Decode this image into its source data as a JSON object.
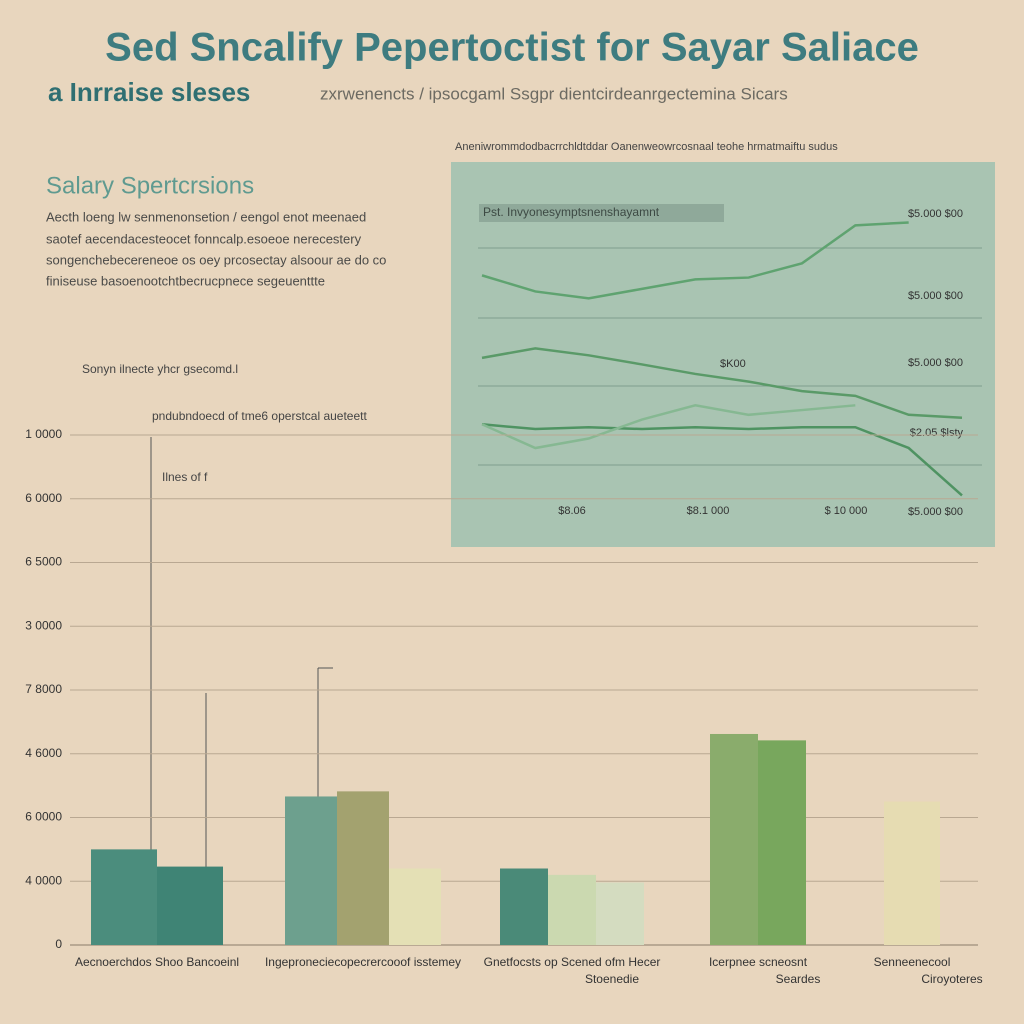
{
  "header": {
    "title": "Sed Sncalify Pepertoctist for Sayar Saliace",
    "subtitle": "a Inrraise sleses",
    "tagline": "zxrwenencts / ipsocgaml Ssgpr dientcirdeanrgectemina Sicars"
  },
  "section": {
    "heading": "Salary Spertcrsions",
    "lines": [
      "Aecth loeng lw senmenonsetion / eengol enot meenaed",
      "saotef aecendacesteocet fonncalp.esoeoe nerecestery",
      "songenchebecereneoe os oey prcosectay alsoour ae do co",
      "finiseuse basoenootchtbecrucpnece segeuenttte"
    ]
  },
  "chart_data": [
    {
      "type": "line",
      "title": "Aneniwrommdodbacrrchldtddar Oanenweowrcosnaal teohe hrmatmaiftu sudus",
      "subtitle": "Pst. Invyonesymptsnenshayamnt",
      "x": [
        0,
        1,
        2,
        3,
        4,
        5,
        6,
        7,
        8,
        9
      ],
      "xlim": [
        0,
        9
      ],
      "ylim": [
        0,
        10
      ],
      "series": [
        {
          "color": "#5fa370",
          "values": [
            7.25,
            6.81,
            6.62,
            6.88,
            7.14,
            7.19,
            7.58,
            8.62,
            8.7,
            null
          ]
        },
        {
          "color": "#5a9a68",
          "values": [
            4.99,
            5.25,
            5.06,
            4.81,
            4.55,
            4.34,
            4.08,
            3.95,
            3.43,
            3.35
          ]
        },
        {
          "color": "#4f9362",
          "values": [
            3.17,
            3.04,
            3.09,
            3.04,
            3.09,
            3.04,
            3.09,
            3.09,
            2.52,
            1.22
          ]
        },
        {
          "color": "#86b892",
          "values": [
            3.17,
            2.52,
            2.78,
            3.3,
            3.69,
            3.43,
            3.56,
            3.69,
            null,
            null
          ]
        }
      ],
      "right_labels": [
        "$5.000 $00",
        "$5.000 $00",
        "$5.000 $00",
        "$2.05 $lsty",
        "$5.000 $00"
      ],
      "bottom_labels": [
        "$8.06",
        "$8.1 000",
        "$ 10 000"
      ],
      "inline_label": "$K00"
    },
    {
      "type": "bar",
      "title": "Sonyn ilnecte yhcr gsecomd.l",
      "subtitle": "pndubndoecd of tme6 operstcal aueteett",
      "annotation": "Ilnes of f",
      "categories": [
        "Aecnoerchdos   Shoo Bancoeinl",
        "Ingeproneciecopecrercooof isstemey",
        "Gnetfocsts op Scened ofm Hecer",
        "Icerpnee scneosnt",
        "Senneenecool"
      ],
      "category_sublabels": [
        null,
        null,
        "Stoenedie",
        "Seardes",
        "Ciroyoteres"
      ],
      "series": [
        {
          "values": [
            1.5,
            2.33,
            1.2,
            3.31,
            2.25
          ],
          "colors": [
            "#4b8d7d",
            "#6da08e",
            "#4a8a78",
            "#8aac6c",
            "#e6dcb2"
          ]
        },
        {
          "values": [
            1.23,
            2.41,
            1.1,
            3.21,
            null
          ],
          "colors": [
            "#3f8475",
            "#a3a26f",
            "#cbd9b0",
            "#78a75d",
            null
          ]
        },
        {
          "values": [
            null,
            1.2,
            0.98,
            null,
            null
          ],
          "colors": [
            null,
            "#e4e0b5",
            "#d4dcc0",
            null,
            null
          ]
        }
      ],
      "ylim": [
        0,
        8
      ],
      "yticks": [
        {
          "value": 0,
          "label": "0"
        },
        {
          "value": 1,
          "label": "4 0000"
        },
        {
          "value": 2,
          "label": "6 0000"
        },
        {
          "value": 3,
          "label": "4 6000"
        },
        {
          "value": 4,
          "label": "7 8000"
        },
        {
          "value": 5,
          "label": "3 0000"
        },
        {
          "value": 6,
          "label": "6 5000"
        },
        {
          "value": 7,
          "label": "6 0000"
        },
        {
          "value": 8,
          "label": "1 0000"
        }
      ],
      "grid": true
    }
  ]
}
